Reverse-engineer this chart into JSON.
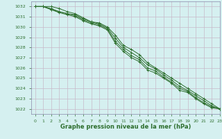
{
  "title": "Graphe pression niveau de la mer (hPa)",
  "bg_color": "#d5f0f0",
  "grid_color": "#c8b8c8",
  "line_color": "#2d6e2d",
  "spine_color": "#8888aa",
  "xlim": [
    -0.5,
    23
  ],
  "ylim": [
    1021.5,
    1032.5
  ],
  "yticks": [
    1022,
    1023,
    1024,
    1025,
    1026,
    1027,
    1028,
    1029,
    1030,
    1031,
    1032
  ],
  "xticks": [
    0,
    1,
    2,
    3,
    4,
    5,
    6,
    7,
    8,
    9,
    10,
    11,
    12,
    13,
    14,
    15,
    16,
    17,
    18,
    19,
    20,
    21,
    22,
    23
  ],
  "xtick_labels": [
    "0",
    "1",
    "2",
    "3",
    "4",
    "5",
    "6",
    "7",
    "8",
    "9",
    "10",
    "11",
    "12",
    "13",
    "14",
    "15",
    "16",
    "17",
    "18",
    "19",
    "20",
    "21",
    "22",
    "23"
  ],
  "series": [
    [
      1032.0,
      1032.0,
      1032.0,
      1031.8,
      1031.5,
      1031.3,
      1030.9,
      1030.5,
      1030.4,
      1030.0,
      1029.2,
      1028.2,
      1027.8,
      1027.3,
      1026.5,
      1026.0,
      1025.5,
      1025.0,
      1024.5,
      1024.0,
      1023.5,
      1023.0,
      1022.5,
      1022.0
    ],
    [
      1032.0,
      1032.0,
      1031.8,
      1031.5,
      1031.3,
      1031.2,
      1030.8,
      1030.5,
      1030.3,
      1029.9,
      1028.9,
      1028.0,
      1027.5,
      1027.0,
      1026.3,
      1025.9,
      1025.3,
      1024.8,
      1024.2,
      1023.8,
      1023.3,
      1022.8,
      1022.3,
      1022.0
    ],
    [
      1032.0,
      1032.0,
      1031.7,
      1031.5,
      1031.3,
      1031.1,
      1030.7,
      1030.4,
      1030.2,
      1029.8,
      1028.6,
      1027.8,
      1027.2,
      1026.8,
      1026.0,
      1025.7,
      1025.1,
      1024.6,
      1024.0,
      1023.7,
      1023.1,
      1022.6,
      1022.2,
      1022.0
    ],
    [
      1032.0,
      1032.0,
      1031.7,
      1031.4,
      1031.2,
      1031.0,
      1030.6,
      1030.3,
      1030.1,
      1029.7,
      1028.4,
      1027.6,
      1027.0,
      1026.6,
      1025.8,
      1025.5,
      1025.0,
      1024.5,
      1023.8,
      1023.6,
      1023.0,
      1022.5,
      1022.1,
      1022.0
    ]
  ],
  "marker_every": 1
}
